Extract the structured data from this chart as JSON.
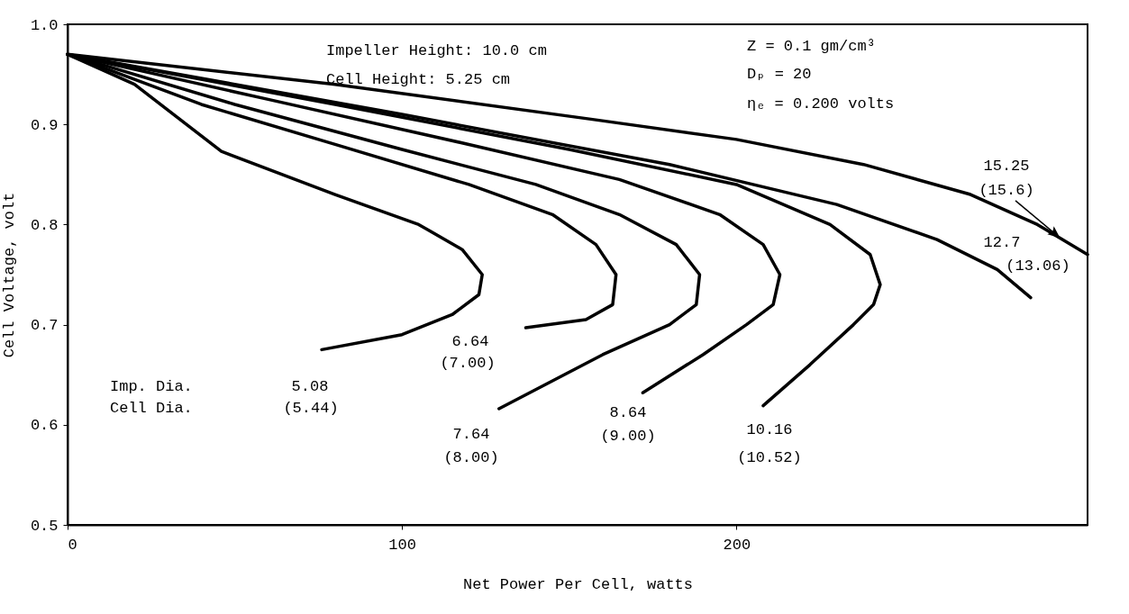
{
  "chart_data": {
    "type": "line",
    "xlabel": "Net Power Per Cell, watts",
    "ylabel": "Cell Voltage, volt",
    "xlim": [
      0,
      305
    ],
    "ylim": [
      0.5,
      1.0
    ],
    "xticks": [
      0,
      100,
      200
    ],
    "yticks": [
      0.5,
      0.6,
      0.7,
      0.8,
      0.9,
      {
        "value": 1.0,
        "label": "1.0"
      }
    ],
    "grid": false,
    "legend": false,
    "marker": "none",
    "line_style": "solid",
    "series": [
      {
        "color": "#000000",
        "x": [
          0,
          20,
          46,
          80,
          105,
          118,
          124,
          123,
          115,
          100,
          76
        ],
        "values": [
          0.97,
          0.94,
          0.873,
          0.83,
          0.8,
          0.775,
          0.75,
          0.73,
          0.71,
          0.69,
          0.675
        ]
      },
      {
        "color": "#000000",
        "x": [
          0,
          40,
          80,
          120,
          145,
          158,
          164,
          163,
          155,
          137
        ],
        "values": [
          0.97,
          0.92,
          0.88,
          0.84,
          0.81,
          0.78,
          0.75,
          0.72,
          0.705,
          0.697
        ]
      },
      {
        "color": "#000000",
        "x": [
          0,
          50,
          100,
          140,
          165,
          182,
          189,
          188,
          180,
          160,
          129
        ],
        "values": [
          0.97,
          0.92,
          0.875,
          0.84,
          0.81,
          0.78,
          0.75,
          0.72,
          0.7,
          0.67,
          0.616
        ]
      },
      {
        "color": "#000000",
        "x": [
          0,
          60,
          120,
          165,
          195,
          208,
          213,
          211,
          203,
          190,
          172
        ],
        "values": [
          0.97,
          0.925,
          0.88,
          0.845,
          0.81,
          0.78,
          0.75,
          0.72,
          0.7,
          0.67,
          0.632
        ]
      },
      {
        "color": "#000000",
        "x": [
          0,
          80,
          150,
          200,
          228,
          240,
          243,
          241,
          235,
          222,
          208
        ],
        "values": [
          0.97,
          0.92,
          0.875,
          0.84,
          0.8,
          0.77,
          0.74,
          0.72,
          0.7,
          0.66,
          0.619
        ]
      },
      {
        "color": "#000000",
        "x": [
          0,
          100,
          180,
          230,
          260,
          278,
          288
        ],
        "values": [
          0.97,
          0.91,
          0.86,
          0.82,
          0.785,
          0.755,
          0.727
        ]
      },
      {
        "color": "#000000",
        "x": [
          0,
          80,
          157,
          200,
          238,
          270,
          290,
          305
        ],
        "values": [
          0.97,
          0.94,
          0.905,
          0.885,
          0.86,
          0.83,
          0.8,
          0.77
        ]
      }
    ],
    "annotations": [
      "Impeller Height: 10.0 cm",
      "Cell Height:  5.25 cm",
      "Z = 0.1 gm/cm³",
      "Dₚ = 20",
      "ηₑ = 0.200 volts",
      "Imp. Dia.",
      "Cell Dia.",
      "5.08",
      "(5.44)",
      "6.64",
      "(7.00)",
      "7.64",
      "(8.00)",
      "8.64",
      "(9.00)",
      "10.16",
      "(10.52)",
      "12.7",
      "(13.06)",
      "15.25",
      "(15.6)"
    ]
  }
}
